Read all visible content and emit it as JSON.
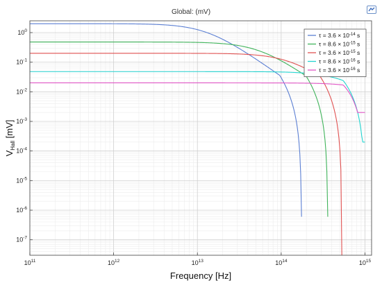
{
  "header": {
    "title": "Global:  (mV)",
    "corner_icon": "comsol-logo-icon"
  },
  "chart_data": {
    "type": "line",
    "xscale": "log",
    "yscale": "log",
    "xlim": [
      100000000000.0,
      1200000000000000.0
    ],
    "ylim": [
      3e-08,
      2.5
    ],
    "xlabel": "Frequency [Hz]",
    "ylabel_main": "V",
    "ylabel_sub": "Hall",
    "ylabel_unit": " [mV]",
    "x_ticks": [
      {
        "value": 100000000000.0,
        "base": "10",
        "exp": "11"
      },
      {
        "value": 1000000000000.0,
        "base": "10",
        "exp": "12"
      },
      {
        "value": 10000000000000.0,
        "base": "10",
        "exp": "13"
      },
      {
        "value": 100000000000000.0,
        "base": "10",
        "exp": "14"
      },
      {
        "value": 1000000000000000.0,
        "base": "10",
        "exp": "15"
      }
    ],
    "y_ticks": [
      {
        "value": 1,
        "base": "10",
        "exp": "0"
      },
      {
        "value": 0.1,
        "base": "10",
        "exp": "-1"
      },
      {
        "value": 0.01,
        "base": "10",
        "exp": "-2"
      },
      {
        "value": 0.001,
        "base": "10",
        "exp": "-3"
      },
      {
        "value": 0.0001,
        "base": "10",
        "exp": "-4"
      },
      {
        "value": 1e-05,
        "base": "10",
        "exp": "-5"
      },
      {
        "value": 1e-06,
        "base": "10",
        "exp": "-6"
      },
      {
        "value": 1e-07,
        "base": "10",
        "exp": "-7"
      }
    ],
    "grid": true,
    "legend_position": "top-right",
    "series": [
      {
        "name": "τ = 3.6×10^-14 s",
        "label_pre": "τ = 3.6 × 10",
        "label_exp": "-14",
        "label_post": " s",
        "color": "#5b7fd3",
        "dc": 2.0,
        "fc": 13000000000000.0,
        "fend": 175000000000000.0,
        "ymin_end": 6e-07
      },
      {
        "name": "τ = 8.6×10^-15 s",
        "label_pre": "τ = 8.6 × 10",
        "label_exp": "-15",
        "label_post": " s",
        "color": "#3fb35a",
        "dc": 0.48,
        "fc": 55000000000000.0,
        "fend": 360000000000000.0,
        "ymin_end": 6e-07
      },
      {
        "name": "τ = 3.6×10^-15 s",
        "label_pre": "τ = 3.6 × 10",
        "label_exp": "-15",
        "label_post": " s",
        "color": "#e05050",
        "dc": 0.2,
        "fc": 130000000000000.0,
        "fend": 530000000000000.0,
        "ymin_end": 3e-08
      },
      {
        "name": "τ = 8.6×10^-16 s",
        "label_pre": "τ = 8.6 × 10",
        "label_exp": "-16",
        "label_post": " s",
        "color": "#22d4d0",
        "dc": 0.048,
        "fc": 550000000000000.0,
        "fend": 1000000000000000.0,
        "ymin_end": 0.0002
      },
      {
        "name": "τ = 3.6×10^-16 s",
        "label_pre": "τ = 3.6 × 10",
        "label_exp": "-16",
        "label_post": " s",
        "color": "#e055c5",
        "dc": 0.02,
        "fc": 1300000000000000.0,
        "fend": 1000000000000000.0,
        "ymin_end": 0.002
      }
    ]
  }
}
